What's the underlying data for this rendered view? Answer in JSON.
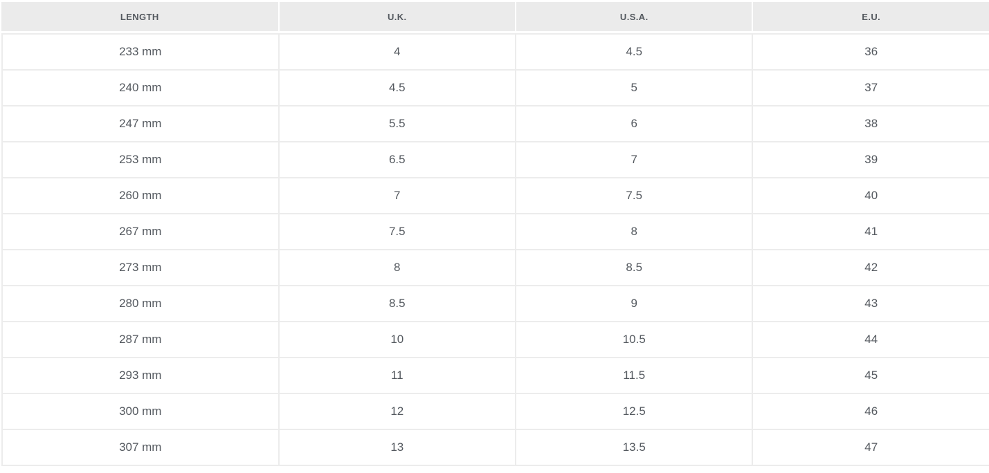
{
  "table": {
    "name": "shoe-size-conversion-chart",
    "columns": [
      {
        "key": "length",
        "label": "LENGTH"
      },
      {
        "key": "uk",
        "label": "U.K."
      },
      {
        "key": "usa",
        "label": "U.S.A."
      },
      {
        "key": "eu",
        "label": "E.U."
      }
    ],
    "rows": [
      [
        "233 mm",
        "4",
        "4.5",
        "36"
      ],
      [
        "240 mm",
        "4.5",
        "5",
        "37"
      ],
      [
        "247 mm",
        "5.5",
        "6",
        "38"
      ],
      [
        "253 mm",
        "6.5",
        "7",
        "39"
      ],
      [
        "260 mm",
        "7",
        "7.5",
        "40"
      ],
      [
        "267 mm",
        "7.5",
        "8",
        "41"
      ],
      [
        "273 mm",
        "8",
        "8.5",
        "42"
      ],
      [
        "280 mm",
        "8.5",
        "9",
        "43"
      ],
      [
        "287 mm",
        "10",
        "10.5",
        "44"
      ],
      [
        "293 mm",
        "11",
        "11.5",
        "45"
      ],
      [
        "300 mm",
        "12",
        "12.5",
        "46"
      ],
      [
        "307 mm",
        "13",
        "13.5",
        "47"
      ]
    ],
    "colors": {
      "header_bg": "#ebebeb",
      "grid_border": "#ececec",
      "text": "#54595f",
      "row_bg": "#ffffff"
    }
  }
}
